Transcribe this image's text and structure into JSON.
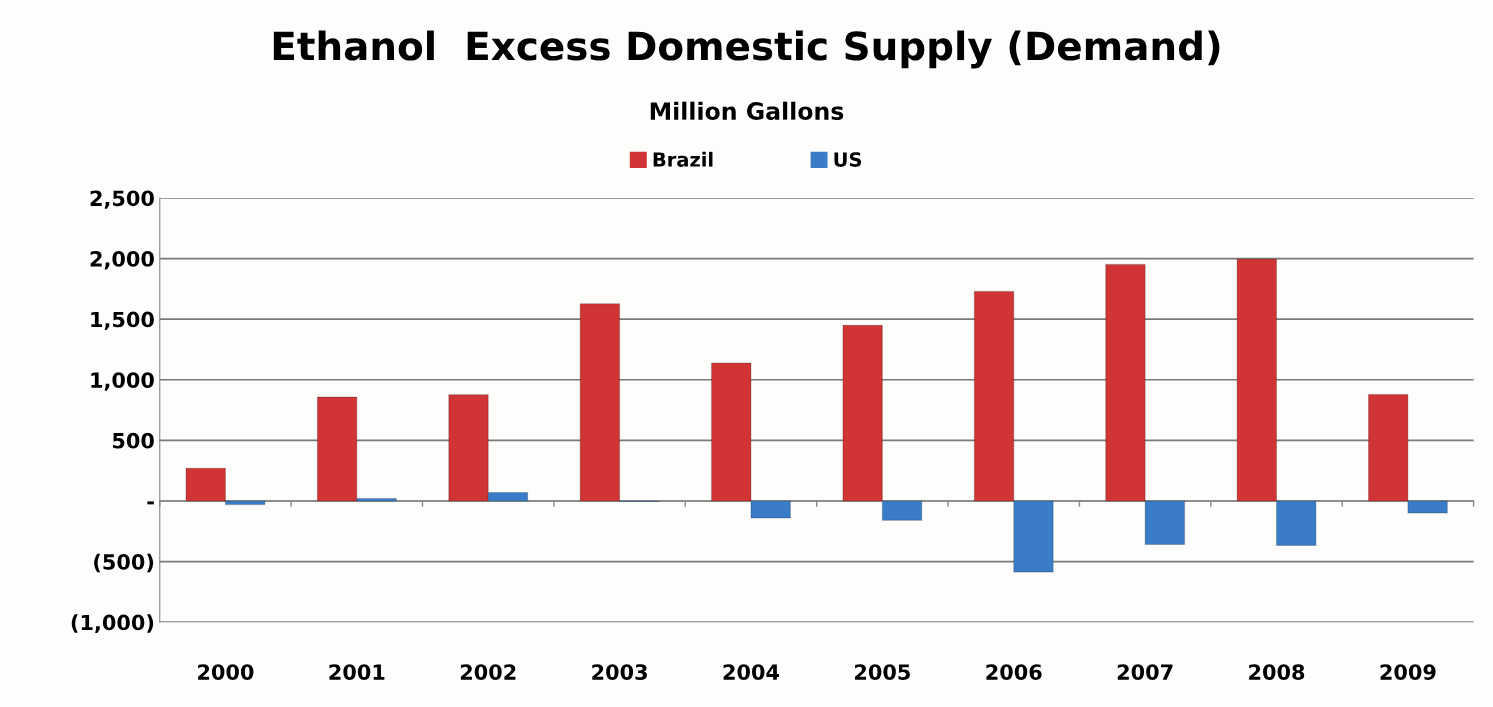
{
  "chart_data": {
    "type": "bar",
    "title": "Ethanol  Excess Domestic Supply (Demand)",
    "subtitle": "Million Gallons",
    "categories": [
      "2000",
      "2001",
      "2002",
      "2003",
      "2004",
      "2005",
      "2006",
      "2007",
      "2008",
      "2009"
    ],
    "series": [
      {
        "name": "Brazil",
        "color": "#d03434",
        "values": [
          270,
          857,
          877,
          1627,
          1138,
          1449,
          1729,
          1952,
          1996,
          878
        ]
      },
      {
        "name": "US",
        "color": "#3a7cc8",
        "values": [
          -30,
          20,
          70,
          -5,
          -140,
          -160,
          -587,
          -359,
          -367,
          -100
        ]
      }
    ],
    "ylim": [
      -1000,
      2500
    ],
    "yticks": [
      {
        "value": -1000,
        "label": "(1,000)"
      },
      {
        "value": -500,
        "label": "(500)"
      },
      {
        "value": 0,
        "label": "-"
      },
      {
        "value": 500,
        "label": "500"
      },
      {
        "value": 1000,
        "label": "1,000"
      },
      {
        "value": 1500,
        "label": "1,500"
      },
      {
        "value": 2000,
        "label": "2,000"
      },
      {
        "value": 2500,
        "label": "2,500"
      }
    ],
    "grid": "y",
    "legend": "top"
  }
}
